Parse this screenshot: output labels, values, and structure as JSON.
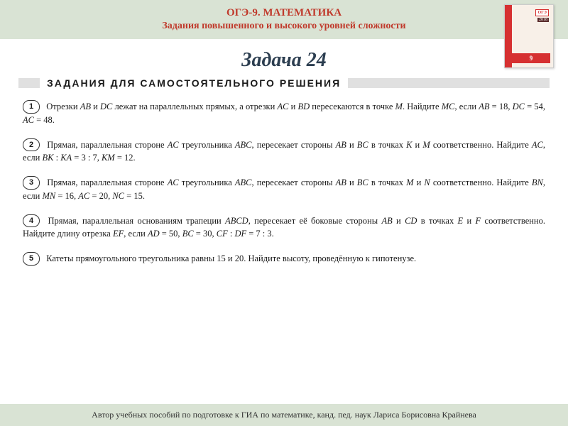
{
  "header": {
    "line1": "ОГЭ-9.  МАТЕМАТИКА",
    "line2": "Задания повышенного и высокого уровней сложности"
  },
  "book": {
    "badge": "ОГЭ",
    "year": "2018",
    "grade": "9"
  },
  "task_title": "Задача 24",
  "section_label": "ЗАДАНИЯ  ДЛЯ  САМОСТОЯТЕЛЬНОГО  РЕШЕНИЯ",
  "problems": [
    {
      "num": "1",
      "html": "Отрезки <span class='mi'>AB</span> и <span class='mi'>DC</span> лежат на параллельных прямых, а отрезки <span class='mi'>AC</span> и <span class='mi'>BD</span> пересекаются в точке <span class='mi'>M</span>. Найдите <span class='mi'>MC</span>, если <span class='mi'>AB</span> = 18, <span class='mi'>DC</span> = 54, <span class='mi'>AC</span> = 48."
    },
    {
      "num": "2",
      "html": "Прямая, параллельная стороне <span class='mi'>AC</span> треугольника <span class='mi'>ABC</span>, пересекает стороны <span class='mi'>AB</span> и <span class='mi'>BC</span> в точках <span class='mi'>K</span> и <span class='mi'>M</span> соответственно. Найдите <span class='mi'>AC</span>, если <span class='mi'>BK</span> : <span class='mi'>KA</span> = 3 : 7, <span class='mi'>KM</span> = 12."
    },
    {
      "num": "3",
      "html": "Прямая, параллельная стороне <span class='mi'>AC</span> треугольника <span class='mi'>ABC</span>, пересекает стороны <span class='mi'>AB</span> и <span class='mi'>BC</span> в точках <span class='mi'>M</span> и <span class='mi'>N</span> соответственно. Найдите <span class='mi'>BN</span>, если <span class='mi'>MN</span> = 16, <span class='mi'>AC</span> = 20, <span class='mi'>NC</span> = 15."
    },
    {
      "num": "4",
      "html": "Прямая, параллельная основаниям трапеции <span class='mi'>ABCD</span>, пересекает её боковые стороны <span class='mi'>AB</span> и <span class='mi'>CD</span> в точках <span class='mi'>E</span> и <span class='mi'>F</span> соответственно. Найдите длину отрезка <span class='mi'>EF</span>, если <span class='mi'>AD</span> = 50, <span class='mi'>BC</span> = 30, <span class='mi'>CF</span> : <span class='mi'>DF</span> = 7 : 3."
    },
    {
      "num": "5",
      "html": "Катеты прямоугольного треугольника равны 15 и 20. Найдите высоту, проведённую к гипотенузе."
    }
  ],
  "footer": "Автор учебных пособий по подготовке к ГИА по математике,  канд. пед. наук  Лариса Борисовна Крайнева",
  "colors": {
    "header_bg": "#d9e3d4",
    "title_color": "#c0392b",
    "task_color": "#2c3e50",
    "bar_color": "#e0e0e0",
    "text_color": "#1a1a1a"
  }
}
